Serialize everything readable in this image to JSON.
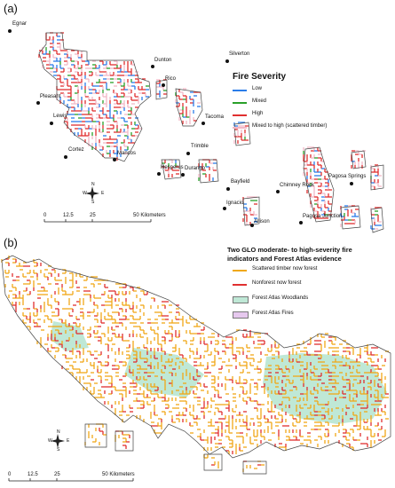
{
  "panel_a": {
    "label": "(a)",
    "legend": {
      "title": "Fire Severity",
      "items": [
        {
          "label": "Low",
          "color": "#2b7de9"
        },
        {
          "label": "Mixed",
          "color": "#2aa02a"
        },
        {
          "label": "High",
          "color": "#e03030"
        },
        {
          "label": "Mixed to high (scattered timber)",
          "color": "#f2b8c6"
        }
      ]
    },
    "towns": [
      "Egnar",
      "Dunton",
      "Silverton",
      "Rico",
      "Pleasant",
      "Lewis",
      "Tacoma",
      "Cortez",
      "Mancos",
      "Trimble",
      "Hesperus",
      "Durango",
      "Bayfield",
      "Chimney Rock",
      "Pagosa Springs",
      "Ignacio",
      "Allison",
      "Pagosa Junction"
    ],
    "scale": {
      "ticks": [
        "0",
        "12.5",
        "25",
        "50 Kilometers"
      ]
    },
    "north": {
      "n": "N",
      "s": "S",
      "e": "E",
      "w": "W"
    }
  },
  "panel_b": {
    "label": "(b)",
    "legend": {
      "title_line1": "Two GLO moderate- to high-severity fire",
      "title_line2": "indicators and Forest Atlas evidence",
      "items": [
        {
          "label": "Scattered timber now forest",
          "color": "#f0a818",
          "kind": "line"
        },
        {
          "label": "Nonforest now forest",
          "color": "#e03030",
          "kind": "line"
        },
        {
          "label": "Forest Atlas Woodlands",
          "color": "#bfe8d6",
          "kind": "box"
        },
        {
          "label": "Forest Atlas Fires",
          "color": "#e6c8ee",
          "kind": "box"
        }
      ]
    },
    "scale": {
      "ticks": [
        "0",
        "12.5",
        "25",
        "50 Kilometers"
      ]
    },
    "north": {
      "n": "N",
      "s": "S",
      "e": "E",
      "w": "W"
    }
  }
}
